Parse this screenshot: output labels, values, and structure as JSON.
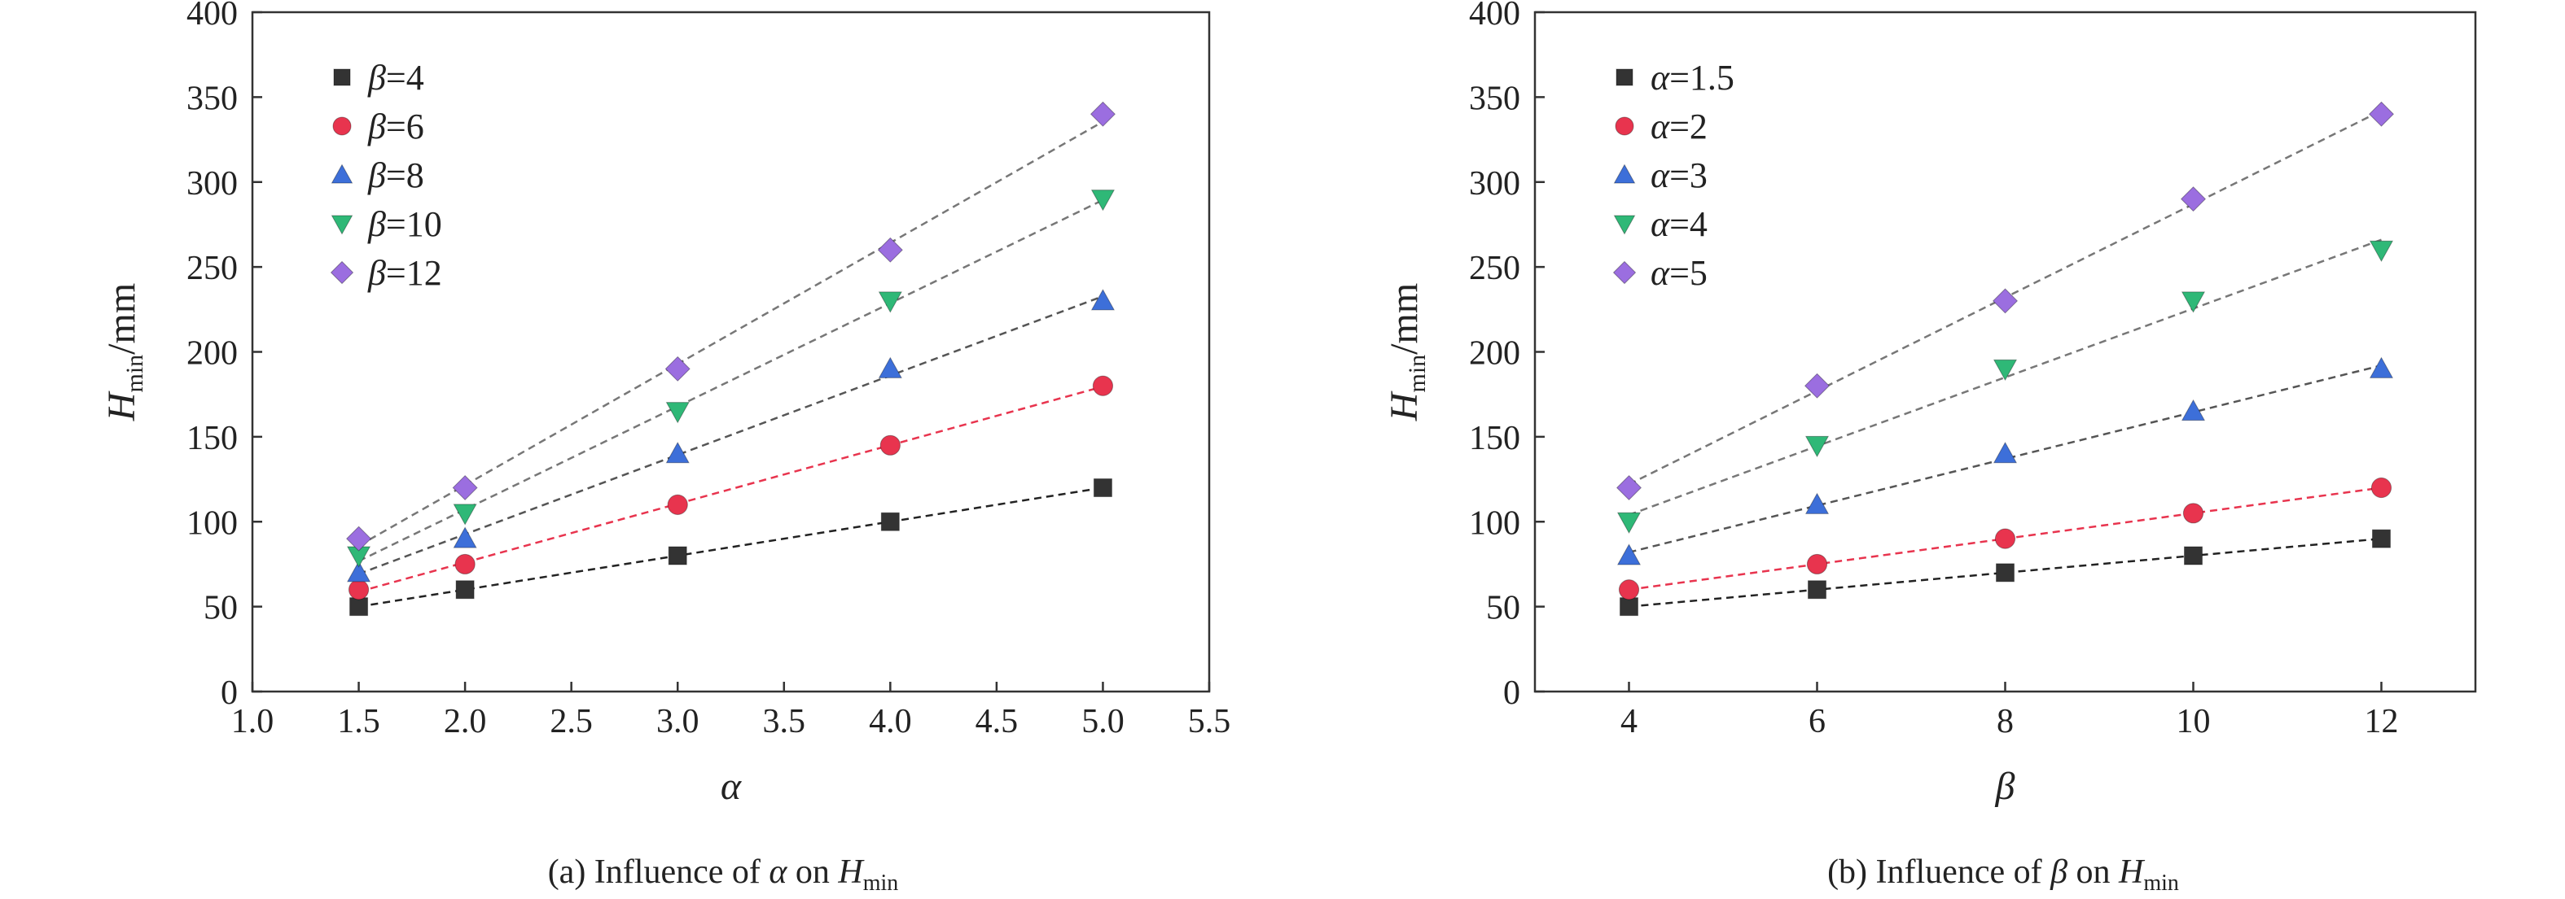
{
  "chart_data": [
    {
      "type": "scatter",
      "caption": {
        "prefix": "(a) Influence of ",
        "var": "α",
        "mid": " on ",
        "H": "H",
        "sub": "min"
      },
      "xlabel": "α",
      "ylabel": {
        "H": "H",
        "sub": "min",
        "unit": "/mm"
      },
      "xlim": [
        1.0,
        5.5
      ],
      "ylim": [
        0,
        400
      ],
      "xticks": [
        1.0,
        1.5,
        2.0,
        2.5,
        3.0,
        3.5,
        4.0,
        4.5,
        5.0,
        5.5
      ],
      "xtick_labels": [
        "1.0",
        "1.5",
        "2.0",
        "2.5",
        "3.0",
        "3.5",
        "4.0",
        "4.5",
        "5.0",
        "5.5"
      ],
      "yticks": [
        0,
        50,
        100,
        150,
        200,
        250,
        300,
        350,
        400
      ],
      "ytick_labels": [
        "0",
        "50",
        "100",
        "150",
        "200",
        "250",
        "300",
        "350",
        "400"
      ],
      "grid": false,
      "legend_position": "top-left",
      "fit_lines": "dashed",
      "x": [
        1.5,
        2.0,
        3.0,
        4.0,
        5.0
      ],
      "series": [
        {
          "name": "β=4",
          "var": "β",
          "val": "=4",
          "marker": "square",
          "color": "#333333",
          "line_color": "#222222",
          "values": [
            50,
            60,
            80,
            100,
            120
          ]
        },
        {
          "name": "β=6",
          "var": "β",
          "val": "=6",
          "marker": "circle",
          "color": "#e8344e",
          "line_color": "#e8344e",
          "values": [
            60,
            75,
            110,
            145,
            180
          ]
        },
        {
          "name": "β=8",
          "var": "β",
          "val": "=8",
          "marker": "triangle-up",
          "color": "#3d6fd9",
          "line_color": "#555555",
          "values": [
            70,
            90,
            140,
            190,
            230
          ]
        },
        {
          "name": "β=10",
          "var": "β",
          "val": "=10",
          "marker": "triangle-down",
          "color": "#2fb877",
          "line_color": "#777777",
          "values": [
            80,
            105,
            165,
            230,
            290
          ]
        },
        {
          "name": "β=12",
          "var": "β",
          "val": "=12",
          "marker": "diamond",
          "color": "#9b6ee0",
          "line_color": "#777777",
          "values": [
            90,
            120,
            190,
            260,
            340
          ]
        }
      ]
    },
    {
      "type": "scatter",
      "caption": {
        "prefix": "(b) Influence of ",
        "var": "β",
        "mid": " on ",
        "H": "H",
        "sub": "min"
      },
      "xlabel": "β",
      "ylabel": {
        "H": "H",
        "sub": "min",
        "unit": "/mm"
      },
      "xlim": [
        3,
        13
      ],
      "ylim": [
        0,
        400
      ],
      "xticks": [
        4,
        6,
        8,
        10,
        12
      ],
      "xtick_labels": [
        "4",
        "6",
        "8",
        "10",
        "12"
      ],
      "yticks": [
        0,
        50,
        100,
        150,
        200,
        250,
        300,
        350,
        400
      ],
      "ytick_labels": [
        "0",
        "50",
        "100",
        "150",
        "200",
        "250",
        "300",
        "350",
        "400"
      ],
      "grid": false,
      "legend_position": "top-left",
      "fit_lines": "dashed",
      "x": [
        4,
        6,
        8,
        10,
        12
      ],
      "series": [
        {
          "name": "α=1.5",
          "var": "α",
          "val": "=1.5",
          "marker": "square",
          "color": "#333333",
          "line_color": "#222222",
          "values": [
            50,
            60,
            70,
            80,
            90
          ]
        },
        {
          "name": "α=2",
          "var": "α",
          "val": "=2",
          "marker": "circle",
          "color": "#e8344e",
          "line_color": "#e8344e",
          "values": [
            60,
            75,
            90,
            105,
            120
          ]
        },
        {
          "name": "α=3",
          "var": "α",
          "val": "=3",
          "marker": "triangle-up",
          "color": "#3d6fd9",
          "line_color": "#555555",
          "values": [
            80,
            110,
            140,
            165,
            190
          ]
        },
        {
          "name": "α=4",
          "var": "α",
          "val": "=4",
          "marker": "triangle-down",
          "color": "#2fb877",
          "line_color": "#777777",
          "values": [
            100,
            145,
            190,
            230,
            260
          ]
        },
        {
          "name": "α=5",
          "var": "α",
          "val": "=5",
          "marker": "diamond",
          "color": "#9b6ee0",
          "line_color": "#777777",
          "values": [
            120,
            180,
            230,
            290,
            340
          ]
        }
      ]
    }
  ]
}
